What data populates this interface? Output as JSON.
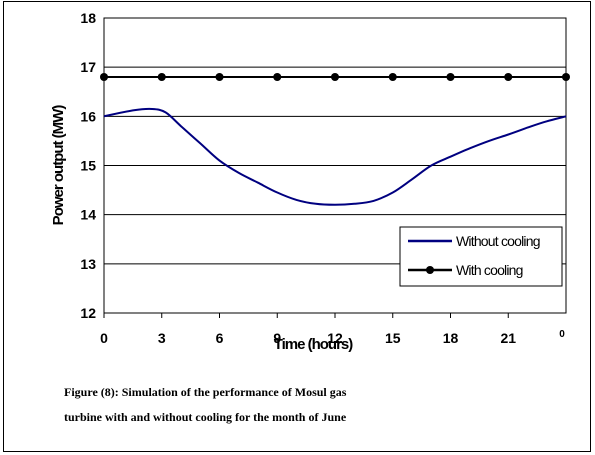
{
  "chart_data": {
    "type": "line",
    "title": "",
    "xlabel": "Time (hours)",
    "ylabel": "Power output (MW)",
    "xlim": [
      0,
      24
    ],
    "ylim": [
      12,
      18
    ],
    "x_ticks": [
      0,
      3,
      6,
      9,
      12,
      15,
      18,
      21
    ],
    "x_tick_labels": [
      "0",
      "3",
      "6",
      "9",
      "12",
      "15",
      "18",
      "21"
    ],
    "x_extra_label": "0",
    "y_ticks": [
      12,
      13,
      14,
      15,
      16,
      17,
      18
    ],
    "y_tick_labels": [
      "12",
      "13",
      "14",
      "15",
      "16",
      "17",
      "18"
    ],
    "grid": "horizontal",
    "legend_position": "lower-right",
    "series": [
      {
        "name": "Without cooling",
        "color": "#000080",
        "marker": "none",
        "x": [
          0,
          1.5,
          2.5,
          3.2,
          4,
          5,
          6,
          7,
          8,
          9,
          10,
          11,
          12,
          13,
          14,
          15,
          16,
          17,
          18,
          19,
          20,
          21,
          22,
          23,
          24
        ],
        "y": [
          16.0,
          16.12,
          16.15,
          16.08,
          15.8,
          15.45,
          15.1,
          14.85,
          14.65,
          14.45,
          14.3,
          14.22,
          14.2,
          14.22,
          14.28,
          14.45,
          14.72,
          15.0,
          15.18,
          15.35,
          15.5,
          15.63,
          15.77,
          15.9,
          16.0
        ]
      },
      {
        "name": "With cooling",
        "color": "#000000",
        "marker": "circle",
        "x": [
          0,
          3,
          6,
          9,
          12,
          15,
          18,
          21,
          24
        ],
        "y": [
          16.8,
          16.8,
          16.8,
          16.8,
          16.8,
          16.8,
          16.8,
          16.8,
          16.8
        ]
      }
    ]
  },
  "caption": {
    "line1": "Figure (8): Simulation of the performance of Mosul gas",
    "line2": "turbine with and without cooling for the month of June"
  }
}
